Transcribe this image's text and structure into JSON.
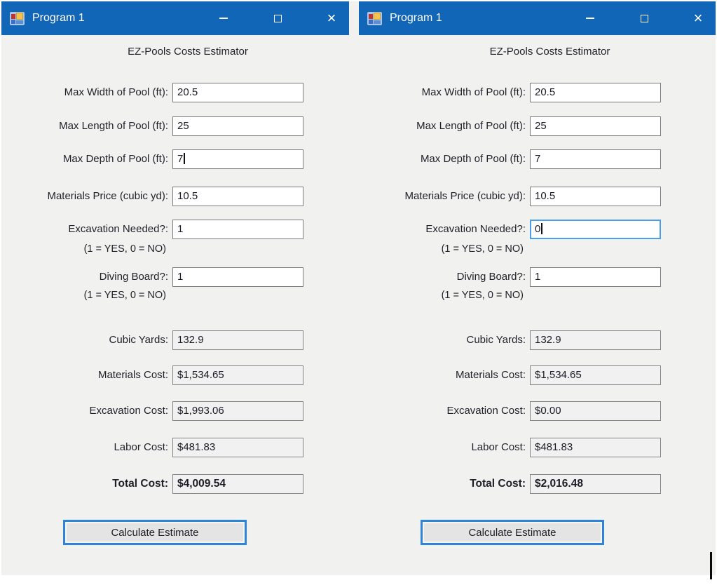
{
  "colors": {
    "titlebar": "#1266b7",
    "titlebar-text": "#ffffff",
    "focus-border": "#47a0e8",
    "button-border": "#2f83d8",
    "box-border": "#7b7b7b",
    "window-bg": "#f1f1f0",
    "label-text": "#1f1f28"
  },
  "icons": {
    "app": "winforms-app-icon",
    "minimize": "minimize-icon",
    "maximize": "maximize-icon",
    "close": "close-icon"
  },
  "windows": [
    {
      "title": "Program 1",
      "heading": "EZ-Pools Costs Estimator",
      "fields": [
        {
          "label": "Max Width of Pool (ft):",
          "value": "20.5"
        },
        {
          "label": "Max Length of Pool (ft):",
          "value": "25"
        },
        {
          "label": "Max Depth of Pool (ft):",
          "value": "7",
          "caret": true
        },
        {
          "label": "Materials Price (cubic yd):",
          "value": "10.5"
        },
        {
          "label": "Excavation Needed?:",
          "value": "1",
          "note": "(1 = YES, 0 = NO)"
        },
        {
          "label": "Diving Board?:",
          "value": "1",
          "note": "(1 = YES, 0 = NO)"
        }
      ],
      "outputs": [
        {
          "label": "Cubic Yards:",
          "value": "132.9"
        },
        {
          "label": "Materials Cost:",
          "value": "$1,534.65"
        },
        {
          "label": "Excavation Cost:",
          "value": "$1,993.06"
        },
        {
          "label": "Labor Cost:",
          "value": "$481.83"
        },
        {
          "label": "Total Cost:",
          "value": "$4,009.54",
          "emphasis": true
        }
      ],
      "button_label": "Calculate Estimate"
    },
    {
      "title": "Program 1",
      "heading": "EZ-Pools Costs Estimator",
      "fields": [
        {
          "label": "Max Width of Pool (ft):",
          "value": "20.5"
        },
        {
          "label": "Max Length of Pool (ft):",
          "value": "25"
        },
        {
          "label": "Max Depth of Pool (ft):",
          "value": "7"
        },
        {
          "label": "Materials Price (cubic yd):",
          "value": "10.5"
        },
        {
          "label": "Excavation Needed?:",
          "value": "0",
          "note": "(1 = YES, 0 = NO)",
          "focused": true,
          "caret": true
        },
        {
          "label": "Diving Board?:",
          "value": "1",
          "note": "(1 = YES, 0 = NO)"
        }
      ],
      "outputs": [
        {
          "label": "Cubic Yards:",
          "value": "132.9"
        },
        {
          "label": "Materials Cost:",
          "value": "$1,534.65"
        },
        {
          "label": "Excavation Cost:",
          "value": "$0.00"
        },
        {
          "label": "Labor Cost:",
          "value": "$481.83"
        },
        {
          "label": "Total Cost:",
          "value": "$2,016.48",
          "emphasis": true
        }
      ],
      "button_label": "Calculate Estimate"
    }
  ]
}
